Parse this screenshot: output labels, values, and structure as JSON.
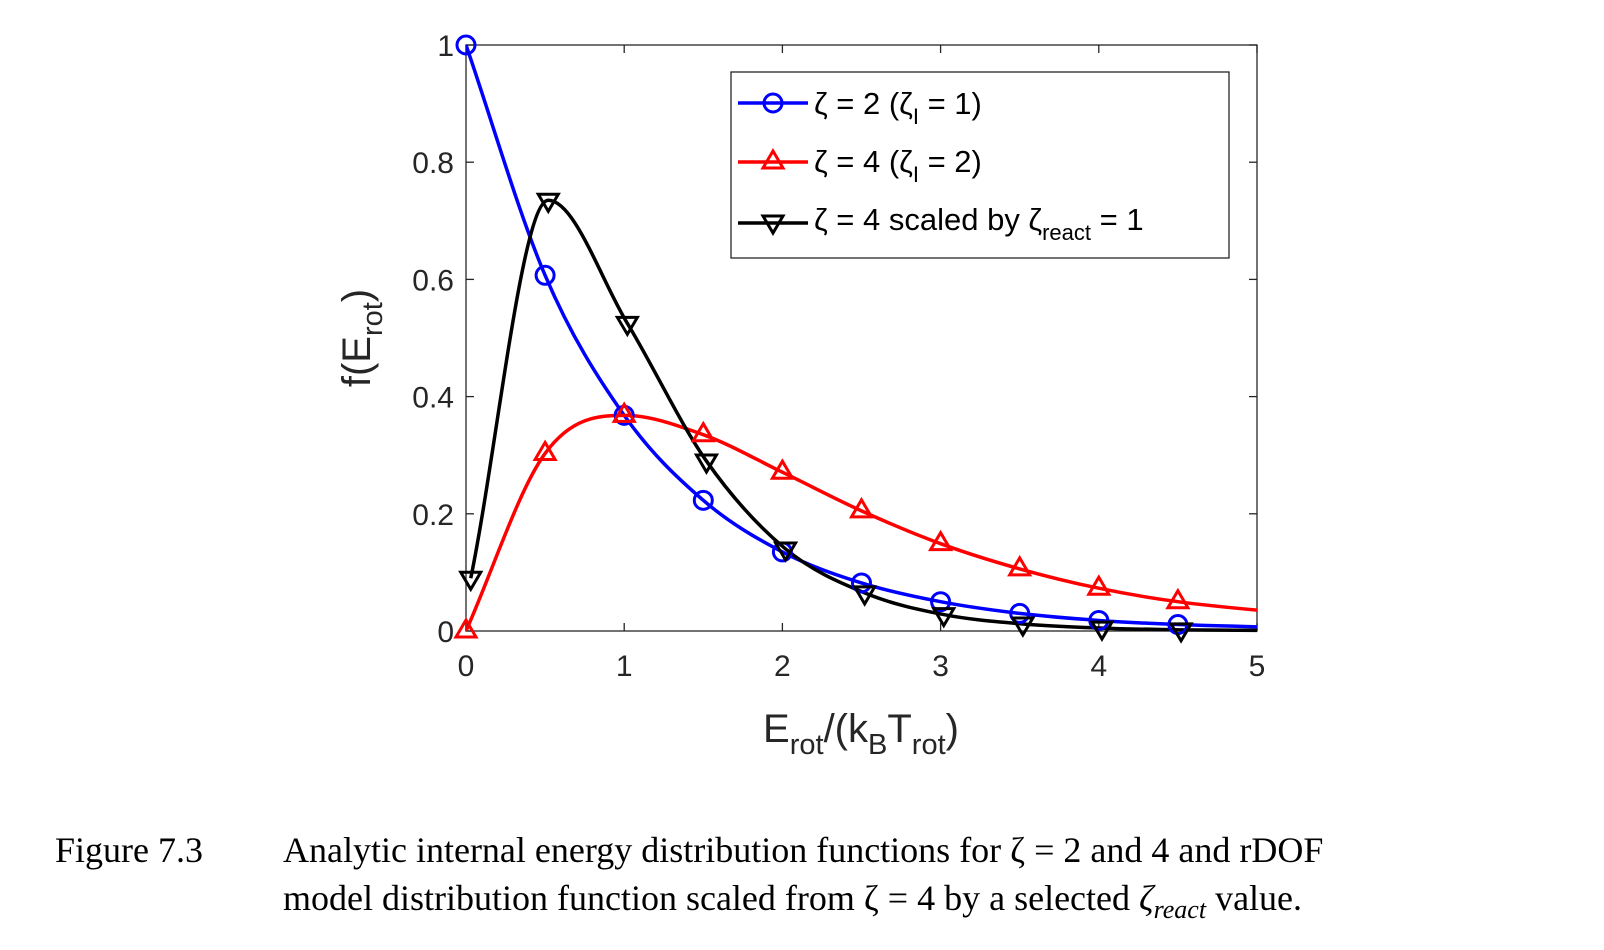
{
  "chart_data": {
    "type": "line",
    "xlabel": {
      "main": "E",
      "sub1": "rot",
      "mid": "/(k",
      "sub2": "B",
      "mid2": "T",
      "sub3": "rot",
      "end": ")"
    },
    "ylabel": {
      "main": "f(E",
      "sub": "rot",
      "end": ")"
    },
    "xlim": [
      0,
      5
    ],
    "ylim": [
      0,
      1
    ],
    "xticks": [
      "0",
      "1",
      "2",
      "3",
      "4",
      "5"
    ],
    "yticks": [
      "0",
      "0.2",
      "0.4",
      "0.6",
      "0.8",
      "1"
    ],
    "grid": false,
    "legend_position": "top-right",
    "series": [
      {
        "name": "ζ = 2 (ζI = 1)",
        "legend": {
          "pre": "ζ = 2 (ζ",
          "sub": "I",
          "post": " = 1)"
        },
        "color": "#0000ff",
        "marker": "circle",
        "marker_x": [
          0,
          0.5,
          1.0,
          1.5,
          2.0,
          2.5,
          3.0,
          3.5,
          4.0,
          4.5
        ],
        "marker_y": [
          1.0,
          0.607,
          0.368,
          0.223,
          0.135,
          0.082,
          0.05,
          0.03,
          0.018,
          0.011
        ]
      },
      {
        "name": "ζ = 4 (ζI = 2)",
        "legend": {
          "pre": "ζ = 4 (ζ",
          "sub": "I",
          "post": " = 2)"
        },
        "color": "#ff0000",
        "marker": "triangle-up",
        "marker_x": [
          0,
          0.5,
          1.0,
          1.5,
          2.0,
          2.5,
          3.0,
          3.5,
          4.0,
          4.5
        ],
        "marker_y": [
          0.0,
          0.303,
          0.368,
          0.335,
          0.271,
          0.205,
          0.149,
          0.106,
          0.073,
          0.05
        ]
      },
      {
        "name": "ζ = 4 scaled by ζreact = 1",
        "legend": {
          "pre": "ζ = 4 scaled by ζ",
          "sub": "react",
          "post": " = 1"
        },
        "color": "#000000",
        "marker": "triangle-down",
        "marker_x": [
          0.03,
          0.52,
          1.02,
          1.52,
          2.02,
          2.52,
          3.02,
          3.52,
          4.02,
          4.52
        ],
        "marker_y": [
          0.09,
          0.735,
          0.525,
          0.29,
          0.14,
          0.065,
          0.028,
          0.012,
          0.005,
          0.002
        ]
      }
    ]
  },
  "caption": {
    "number": "Figure 7.3",
    "line1": "Analytic internal energy distribution functions for ζ = 2 and 4 and rDOF",
    "line2_a": "model distribution function scaled from ζ = 4 by a selected ",
    "line2_zeta": "ζ",
    "line2_sub": "react",
    "line2_b": " value."
  }
}
